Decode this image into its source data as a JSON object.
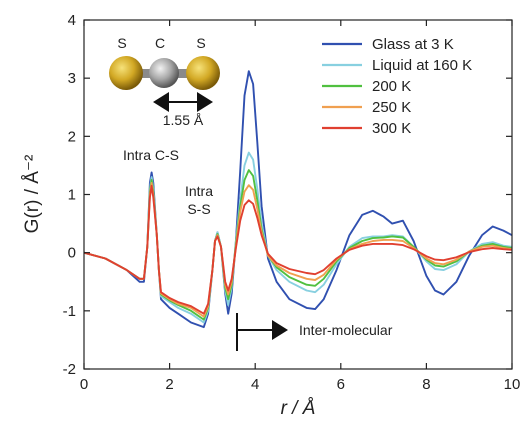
{
  "chart_data": {
    "type": "line",
    "xlabel": "r / Å",
    "ylabel": "G(r) / Å⁻²",
    "xlim": [
      0,
      10
    ],
    "ylim": [
      -2,
      4
    ],
    "xticks": [
      "0",
      "2",
      "4",
      "6",
      "8",
      "10"
    ],
    "yticks": [
      "-2",
      "-1",
      "0",
      "1",
      "2",
      "3",
      "4"
    ],
    "legend_position": "top-right",
    "grid": false,
    "series": [
      {
        "name": "Glass at 3 K",
        "color": "#3050b0",
        "points": [
          [
            0,
            0
          ],
          [
            0.5,
            -0.1
          ],
          [
            1,
            -0.3
          ],
          [
            1.3,
            -0.5
          ],
          [
            1.4,
            -0.5
          ],
          [
            1.48,
            0.1
          ],
          [
            1.54,
            1.2
          ],
          [
            1.58,
            1.38
          ],
          [
            1.62,
            1.2
          ],
          [
            1.7,
            0.3
          ],
          [
            1.75,
            -0.3
          ],
          [
            1.8,
            -0.8
          ],
          [
            2,
            -0.95
          ],
          [
            2.2,
            -1.05
          ],
          [
            2.5,
            -1.2
          ],
          [
            2.8,
            -1.28
          ],
          [
            2.9,
            -1.05
          ],
          [
            3.0,
            -0.3
          ],
          [
            3.06,
            0.2
          ],
          [
            3.12,
            0.35
          ],
          [
            3.2,
            0.1
          ],
          [
            3.3,
            -0.7
          ],
          [
            3.37,
            -1.05
          ],
          [
            3.45,
            -0.7
          ],
          [
            3.55,
            0.2
          ],
          [
            3.65,
            1.4
          ],
          [
            3.75,
            2.7
          ],
          [
            3.85,
            3.12
          ],
          [
            3.95,
            2.9
          ],
          [
            4.05,
            1.9
          ],
          [
            4.15,
            0.8
          ],
          [
            4.3,
            -0.1
          ],
          [
            4.5,
            -0.5
          ],
          [
            4.8,
            -0.8
          ],
          [
            5.2,
            -0.95
          ],
          [
            5.4,
            -0.97
          ],
          [
            5.6,
            -0.8
          ],
          [
            5.9,
            -0.3
          ],
          [
            6.2,
            0.3
          ],
          [
            6.5,
            0.65
          ],
          [
            6.75,
            0.72
          ],
          [
            7.0,
            0.62
          ],
          [
            7.2,
            0.5
          ],
          [
            7.45,
            0.55
          ],
          [
            7.7,
            0.2
          ],
          [
            8.0,
            -0.4
          ],
          [
            8.2,
            -0.65
          ],
          [
            8.4,
            -0.72
          ],
          [
            8.7,
            -0.5
          ],
          [
            9.0,
            -0.05
          ],
          [
            9.3,
            0.3
          ],
          [
            9.55,
            0.45
          ],
          [
            9.8,
            0.38
          ],
          [
            10,
            0.3
          ]
        ]
      },
      {
        "name": "Liquid at 160 K",
        "color": "#88d0e0",
        "points": [
          [
            0,
            0
          ],
          [
            0.5,
            -0.1
          ],
          [
            1,
            -0.3
          ],
          [
            1.3,
            -0.45
          ],
          [
            1.4,
            -0.45
          ],
          [
            1.48,
            0.1
          ],
          [
            1.54,
            1.1
          ],
          [
            1.58,
            1.3
          ],
          [
            1.62,
            1.1
          ],
          [
            1.7,
            0.3
          ],
          [
            1.75,
            -0.3
          ],
          [
            1.8,
            -0.75
          ],
          [
            2,
            -0.85
          ],
          [
            2.2,
            -0.95
          ],
          [
            2.5,
            -1.05
          ],
          [
            2.8,
            -1.2
          ],
          [
            2.9,
            -1.0
          ],
          [
            3.0,
            -0.3
          ],
          [
            3.06,
            0.2
          ],
          [
            3.12,
            0.35
          ],
          [
            3.2,
            0.1
          ],
          [
            3.3,
            -0.65
          ],
          [
            3.37,
            -0.9
          ],
          [
            3.45,
            -0.6
          ],
          [
            3.55,
            0.2
          ],
          [
            3.65,
            0.9
          ],
          [
            3.75,
            1.5
          ],
          [
            3.85,
            1.72
          ],
          [
            3.95,
            1.6
          ],
          [
            4.05,
            1.1
          ],
          [
            4.15,
            0.5
          ],
          [
            4.3,
            -0.05
          ],
          [
            4.5,
            -0.3
          ],
          [
            4.8,
            -0.5
          ],
          [
            5.2,
            -0.65
          ],
          [
            5.4,
            -0.68
          ],
          [
            5.6,
            -0.55
          ],
          [
            5.9,
            -0.2
          ],
          [
            6.2,
            0.1
          ],
          [
            6.5,
            0.25
          ],
          [
            6.75,
            0.28
          ],
          [
            7.0,
            0.28
          ],
          [
            7.2,
            0.3
          ],
          [
            7.45,
            0.28
          ],
          [
            7.7,
            0.1
          ],
          [
            8.0,
            -0.15
          ],
          [
            8.2,
            -0.28
          ],
          [
            8.4,
            -0.3
          ],
          [
            8.7,
            -0.2
          ],
          [
            9.0,
            0.02
          ],
          [
            9.3,
            0.15
          ],
          [
            9.55,
            0.18
          ],
          [
            9.8,
            0.12
          ],
          [
            10,
            0.1
          ]
        ]
      },
      {
        "name": "200 K",
        "color": "#50c040",
        "points": [
          [
            0,
            0
          ],
          [
            0.5,
            -0.1
          ],
          [
            1,
            -0.3
          ],
          [
            1.3,
            -0.45
          ],
          [
            1.4,
            -0.45
          ],
          [
            1.48,
            0.1
          ],
          [
            1.54,
            1.05
          ],
          [
            1.58,
            1.25
          ],
          [
            1.62,
            1.05
          ],
          [
            1.7,
            0.3
          ],
          [
            1.75,
            -0.3
          ],
          [
            1.8,
            -0.72
          ],
          [
            2,
            -0.82
          ],
          [
            2.2,
            -0.9
          ],
          [
            2.5,
            -1.0
          ],
          [
            2.8,
            -1.15
          ],
          [
            2.9,
            -0.95
          ],
          [
            3.0,
            -0.3
          ],
          [
            3.06,
            0.2
          ],
          [
            3.12,
            0.32
          ],
          [
            3.2,
            0.1
          ],
          [
            3.3,
            -0.6
          ],
          [
            3.37,
            -0.8
          ],
          [
            3.45,
            -0.55
          ],
          [
            3.55,
            0.15
          ],
          [
            3.65,
            0.8
          ],
          [
            3.75,
            1.25
          ],
          [
            3.85,
            1.42
          ],
          [
            3.95,
            1.32
          ],
          [
            4.05,
            0.9
          ],
          [
            4.15,
            0.4
          ],
          [
            4.3,
            -0.05
          ],
          [
            4.5,
            -0.25
          ],
          [
            4.8,
            -0.42
          ],
          [
            5.2,
            -0.55
          ],
          [
            5.4,
            -0.57
          ],
          [
            5.6,
            -0.45
          ],
          [
            5.9,
            -0.15
          ],
          [
            6.2,
            0.08
          ],
          [
            6.5,
            0.2
          ],
          [
            6.75,
            0.25
          ],
          [
            7.0,
            0.26
          ],
          [
            7.2,
            0.28
          ],
          [
            7.45,
            0.26
          ],
          [
            7.7,
            0.1
          ],
          [
            8.0,
            -0.12
          ],
          [
            8.2,
            -0.22
          ],
          [
            8.4,
            -0.24
          ],
          [
            8.7,
            -0.15
          ],
          [
            9.0,
            0.02
          ],
          [
            9.3,
            0.12
          ],
          [
            9.55,
            0.15
          ],
          [
            9.8,
            0.1
          ],
          [
            10,
            0.08
          ]
        ]
      },
      {
        "name": "250 K",
        "color": "#f0a050",
        "points": [
          [
            0,
            0
          ],
          [
            0.5,
            -0.1
          ],
          [
            1,
            -0.3
          ],
          [
            1.3,
            -0.45
          ],
          [
            1.4,
            -0.45
          ],
          [
            1.48,
            0.1
          ],
          [
            1.54,
            1.0
          ],
          [
            1.58,
            1.2
          ],
          [
            1.62,
            1.0
          ],
          [
            1.7,
            0.3
          ],
          [
            1.75,
            -0.3
          ],
          [
            1.8,
            -0.7
          ],
          [
            2,
            -0.8
          ],
          [
            2.2,
            -0.88
          ],
          [
            2.5,
            -0.95
          ],
          [
            2.8,
            -1.1
          ],
          [
            2.9,
            -0.92
          ],
          [
            3.0,
            -0.3
          ],
          [
            3.06,
            0.2
          ],
          [
            3.12,
            0.3
          ],
          [
            3.2,
            0.1
          ],
          [
            3.3,
            -0.55
          ],
          [
            3.37,
            -0.72
          ],
          [
            3.45,
            -0.5
          ],
          [
            3.55,
            0.1
          ],
          [
            3.65,
            0.7
          ],
          [
            3.75,
            1.05
          ],
          [
            3.85,
            1.16
          ],
          [
            3.95,
            1.08
          ],
          [
            4.05,
            0.75
          ],
          [
            4.15,
            0.35
          ],
          [
            4.3,
            -0.05
          ],
          [
            4.5,
            -0.22
          ],
          [
            4.8,
            -0.35
          ],
          [
            5.2,
            -0.45
          ],
          [
            5.4,
            -0.47
          ],
          [
            5.6,
            -0.38
          ],
          [
            5.9,
            -0.12
          ],
          [
            6.2,
            0.06
          ],
          [
            6.5,
            0.15
          ],
          [
            6.75,
            0.2
          ],
          [
            7.0,
            0.22
          ],
          [
            7.2,
            0.22
          ],
          [
            7.45,
            0.2
          ],
          [
            7.7,
            0.08
          ],
          [
            8.0,
            -0.1
          ],
          [
            8.2,
            -0.18
          ],
          [
            8.4,
            -0.2
          ],
          [
            8.7,
            -0.12
          ],
          [
            9.0,
            0.02
          ],
          [
            9.3,
            0.1
          ],
          [
            9.55,
            0.12
          ],
          [
            9.8,
            0.08
          ],
          [
            10,
            0.06
          ]
        ]
      },
      {
        "name": "300 K",
        "color": "#e04030",
        "points": [
          [
            0,
            0
          ],
          [
            0.5,
            -0.1
          ],
          [
            1,
            -0.3
          ],
          [
            1.3,
            -0.45
          ],
          [
            1.4,
            -0.45
          ],
          [
            1.48,
            0.1
          ],
          [
            1.54,
            0.95
          ],
          [
            1.58,
            1.15
          ],
          [
            1.62,
            0.95
          ],
          [
            1.7,
            0.3
          ],
          [
            1.75,
            -0.3
          ],
          [
            1.8,
            -0.68
          ],
          [
            2,
            -0.78
          ],
          [
            2.2,
            -0.85
          ],
          [
            2.5,
            -0.92
          ],
          [
            2.8,
            -1.05
          ],
          [
            2.9,
            -0.88
          ],
          [
            3.0,
            -0.3
          ],
          [
            3.06,
            0.2
          ],
          [
            3.12,
            0.28
          ],
          [
            3.2,
            0.1
          ],
          [
            3.3,
            -0.5
          ],
          [
            3.37,
            -0.65
          ],
          [
            3.45,
            -0.45
          ],
          [
            3.55,
            0.08
          ],
          [
            3.65,
            0.55
          ],
          [
            3.75,
            0.82
          ],
          [
            3.85,
            0.9
          ],
          [
            3.95,
            0.84
          ],
          [
            4.05,
            0.6
          ],
          [
            4.15,
            0.3
          ],
          [
            4.3,
            -0.02
          ],
          [
            4.5,
            -0.18
          ],
          [
            4.8,
            -0.28
          ],
          [
            5.2,
            -0.35
          ],
          [
            5.4,
            -0.37
          ],
          [
            5.6,
            -0.3
          ],
          [
            5.9,
            -0.1
          ],
          [
            6.2,
            0.05
          ],
          [
            6.5,
            0.12
          ],
          [
            6.75,
            0.15
          ],
          [
            7.0,
            0.15
          ],
          [
            7.2,
            0.15
          ],
          [
            7.45,
            0.13
          ],
          [
            7.7,
            0.06
          ],
          [
            8.0,
            -0.06
          ],
          [
            8.2,
            -0.12
          ],
          [
            8.4,
            -0.13
          ],
          [
            8.7,
            -0.08
          ],
          [
            9.0,
            0.01
          ],
          [
            9.3,
            0.06
          ],
          [
            9.55,
            0.08
          ],
          [
            9.8,
            0.06
          ],
          [
            10,
            0.05
          ]
        ]
      }
    ],
    "annotations": {
      "intra_cs": "Intra C-S",
      "intra_ss_line1": "Intra",
      "intra_ss_line2": "S-S",
      "inter_molecular": "Inter-molecular",
      "molecule_atoms": [
        "S",
        "C",
        "S"
      ],
      "bond_length": "1.55 Å"
    }
  }
}
